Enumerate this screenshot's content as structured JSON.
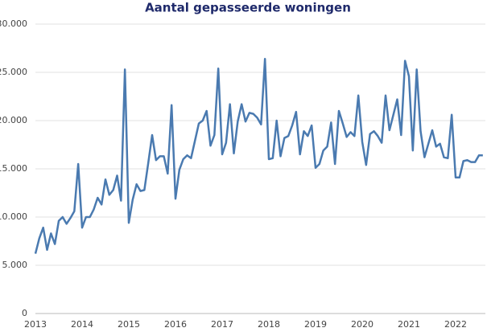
{
  "chart_data": {
    "type": "line",
    "title": "Aantal gepasseerde woningen",
    "categories": [
      "2013",
      null,
      null,
      null,
      null,
      null,
      null,
      null,
      null,
      null,
      null,
      null,
      "2014",
      null,
      null,
      null,
      null,
      null,
      null,
      null,
      null,
      null,
      null,
      null,
      "2015",
      null,
      null,
      null,
      null,
      null,
      null,
      null,
      null,
      null,
      null,
      null,
      "2016",
      null,
      null,
      null,
      null,
      null,
      null,
      null,
      null,
      null,
      null,
      null,
      "2017",
      null,
      null,
      null,
      null,
      null,
      null,
      null,
      null,
      null,
      null,
      null,
      "2018",
      null,
      null,
      null,
      null,
      null,
      null,
      null,
      null,
      null,
      null,
      null,
      "2019",
      null,
      null,
      null,
      null,
      null,
      null,
      null,
      null,
      null,
      null,
      null,
      "2020",
      null,
      null,
      null,
      null,
      null,
      null,
      null,
      null,
      null,
      null,
      null,
      "2021",
      null,
      null,
      null,
      null,
      null,
      null,
      null,
      null,
      null,
      null,
      null,
      "2022",
      null,
      null,
      null,
      null,
      null,
      null,
      null
    ],
    "values": [
      6200,
      7800,
      8900,
      6600,
      8300,
      7200,
      9600,
      10000,
      9300,
      9900,
      10600,
      15500,
      8900,
      10000,
      10000,
      10800,
      12000,
      11300,
      13900,
      12300,
      12800,
      14300,
      11700,
      25300,
      9400,
      11800,
      13400,
      12700,
      12800,
      15600,
      18500,
      15900,
      16300,
      16300,
      14500,
      21600,
      11900,
      14900,
      16000,
      16400,
      16100,
      17900,
      19700,
      20000,
      21000,
      17400,
      18500,
      25400,
      16500,
      17700,
      21700,
      16600,
      19900,
      21700,
      19900,
      20800,
      20700,
      20300,
      19600,
      26400,
      16000,
      16100,
      20000,
      16300,
      18200,
      18400,
      19500,
      20900,
      16500,
      18900,
      18400,
      19500,
      15100,
      15500,
      16900,
      17300,
      19800,
      15500,
      21000,
      19700,
      18300,
      18800,
      18400,
      22600,
      17800,
      15400,
      18600,
      18900,
      18400,
      17700,
      22600,
      19000,
      20600,
      22200,
      18500,
      26200,
      24600,
      16900,
      25300,
      18900,
      16200,
      17600,
      19000,
      17300,
      17600,
      16200,
      16100,
      20600,
      14100,
      14100,
      15800,
      15900,
      15700,
      15700,
      16400,
      16400
    ],
    "color": "#4a7ab0",
    "ylim": [
      0,
      30000
    ],
    "yticks": [
      0,
      {
        "value": 5000,
        "label": "5.000"
      },
      {
        "value": 10000,
        "label": "10.000"
      },
      {
        "value": 15000,
        "label": "15.000"
      },
      {
        "value": 20000,
        "label": "20.000"
      },
      {
        "value": 25000,
        "label": "25.000"
      },
      {
        "value": 30000,
        "label": "30.000"
      }
    ],
    "grid": true
  }
}
